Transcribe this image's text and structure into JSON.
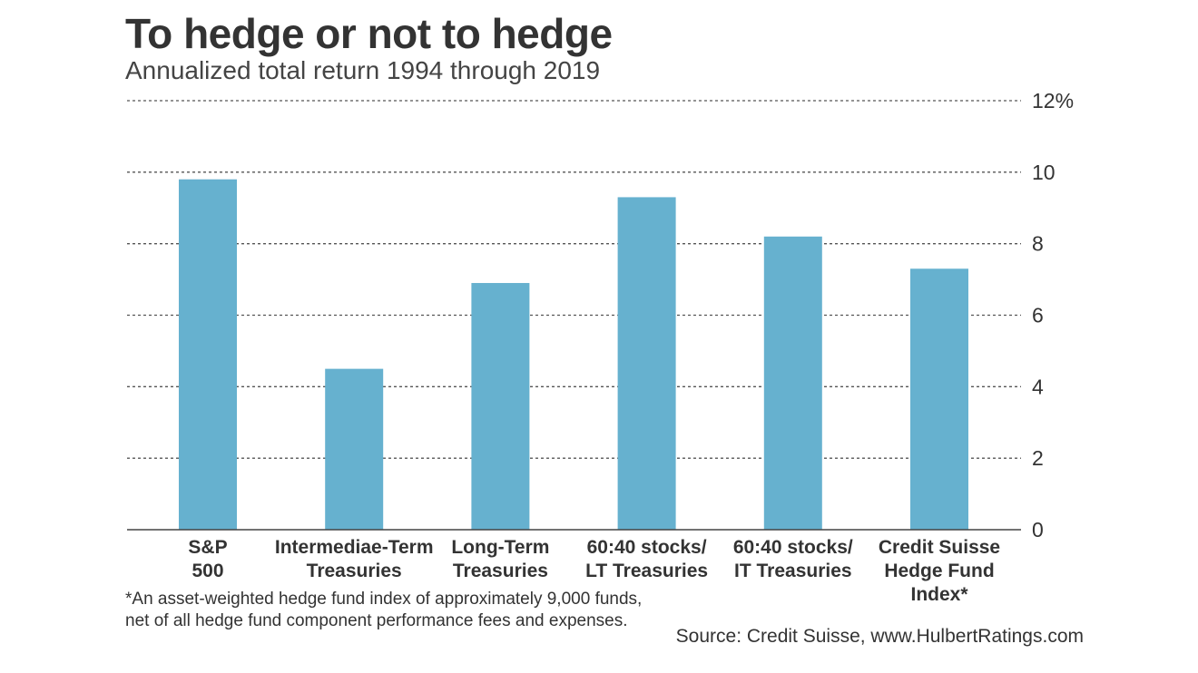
{
  "header": {
    "title": "To hedge or not to hedge",
    "subtitle": "Annualized total return 1994 through 2019"
  },
  "colors": {
    "bar": "#66b1cf",
    "grid": "#555555",
    "text": "#333333"
  },
  "chart_data": {
    "type": "bar",
    "categories": [
      [
        "S&P",
        "500"
      ],
      [
        "Intermediae-Term",
        "Treasuries"
      ],
      [
        "Long-Term",
        "Treasuries"
      ],
      [
        "60:40 stocks/",
        "LT Treasuries"
      ],
      [
        "60:40 stocks/",
        "IT Treasuries"
      ],
      [
        "Credit Suisse",
        "Hedge Fund",
        "Index*"
      ]
    ],
    "values": [
      9.8,
      4.5,
      6.9,
      9.3,
      8.2,
      7.3
    ],
    "ylim": [
      0,
      12
    ],
    "yticks": [
      0,
      2,
      4,
      6,
      8,
      10,
      12
    ],
    "ytick_labels": [
      "0",
      "2",
      "4",
      "6",
      "8",
      "10",
      "12%"
    ],
    "grid": true,
    "grid_style": "dotted",
    "yaxis_side": "right"
  },
  "footer": {
    "footnote_lines": [
      "*An asset-weighted hedge fund index of approximately 9,000 funds,",
      "net of all hedge fund component performance fees and expenses."
    ],
    "source": "Source: Credit Suisse, www.HulbertRatings.com"
  }
}
